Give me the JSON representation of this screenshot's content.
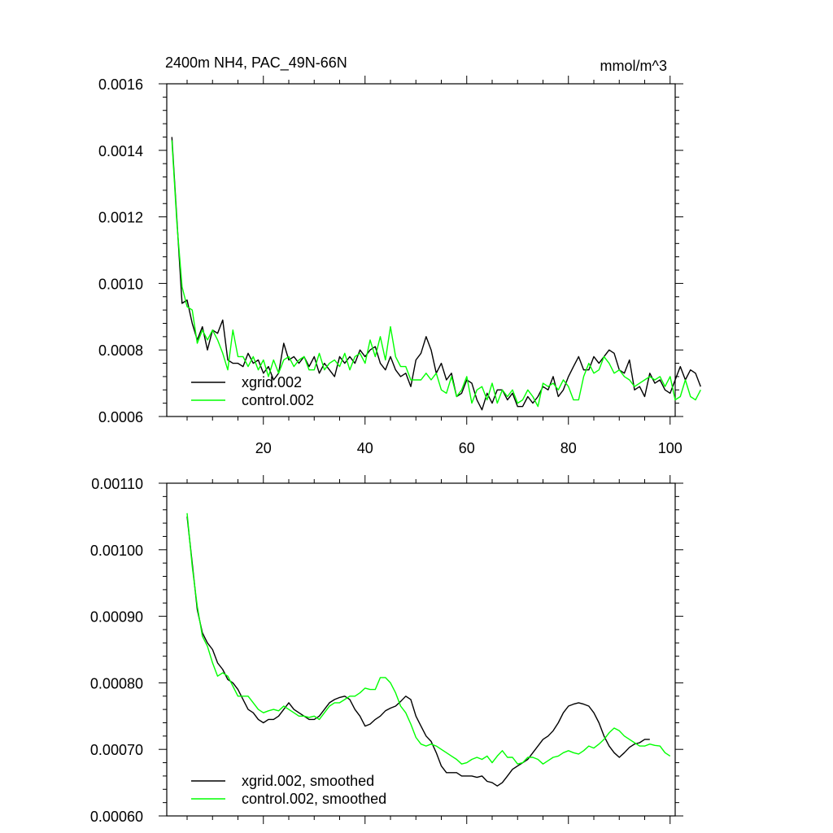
{
  "chart_data": [
    {
      "type": "line",
      "title": "2400m NH4, PAC_49N-66N",
      "units": "mmol/m^3",
      "xlim": [
        1,
        101
      ],
      "ylim": [
        0.0006,
        0.0016
      ],
      "x_ticks": [
        20,
        40,
        60,
        80,
        100
      ],
      "x_tick_labels": [
        "20",
        "40",
        "60",
        "80",
        "100"
      ],
      "y_ticks": [
        0.0006,
        0.0008,
        0.001,
        0.0012,
        0.0014,
        0.0016
      ],
      "y_tick_labels": [
        "0.0006",
        "0.0008",
        "0.0010",
        "0.0012",
        "0.0014",
        "0.0016"
      ],
      "x_start": 2,
      "legend_position": "bottom-left",
      "series": [
        {
          "name": "xgrid.002",
          "color": "#000000",
          "values": [
            0.00144,
            0.00119,
            0.00094,
            0.00095,
            0.00088,
            0.00083,
            0.00087,
            0.0008,
            0.00086,
            0.00085,
            0.00089,
            0.00077,
            0.00076,
            0.00076,
            0.00075,
            0.00079,
            0.00076,
            0.00077,
            0.00073,
            0.00075,
            0.00071,
            0.00073,
            0.00082,
            0.00077,
            0.00078,
            0.00076,
            0.00078,
            0.00075,
            0.00078,
            0.00073,
            0.00076,
            0.00074,
            0.00072,
            0.00078,
            0.00076,
            0.00078,
            0.00076,
            0.0008,
            0.00078,
            0.0008,
            0.00081,
            0.00076,
            0.00074,
            0.00078,
            0.00074,
            0.00072,
            0.00073,
            0.00069,
            0.00077,
            0.00079,
            0.00084,
            0.0008,
            0.00073,
            0.00076,
            0.00071,
            0.00073,
            0.00066,
            0.00067,
            0.00071,
            0.0007,
            0.00065,
            0.00062,
            0.00067,
            0.00064,
            0.00068,
            0.00068,
            0.00065,
            0.00067,
            0.00063,
            0.00063,
            0.00066,
            0.00064,
            0.00066,
            0.00069,
            0.00068,
            0.00072,
            0.00066,
            0.00068,
            0.00072,
            0.00075,
            0.00078,
            0.00074,
            0.00074,
            0.00078,
            0.00076,
            0.00078,
            0.0008,
            0.00079,
            0.00074,
            0.00073,
            0.00077,
            0.00068,
            0.00069,
            0.00066,
            0.00073,
            0.0007,
            0.00071,
            0.00068,
            0.00067,
            0.00071,
            0.00075,
            0.00071,
            0.00074,
            0.00073,
            0.00069
          ]
        },
        {
          "name": "control.002",
          "color": "#00ff00",
          "values": [
            0.00143,
            0.00118,
            0.00099,
            0.00093,
            0.00092,
            0.00082,
            0.00086,
            0.00083,
            0.00086,
            0.00083,
            0.00079,
            0.00074,
            0.00086,
            0.00078,
            0.00078,
            0.00075,
            0.00078,
            0.00074,
            0.00077,
            0.00072,
            0.00077,
            0.00073,
            0.00077,
            0.00078,
            0.00075,
            0.00077,
            0.00078,
            0.00074,
            0.00074,
            0.00079,
            0.00074,
            0.00076,
            0.00077,
            0.00075,
            0.00079,
            0.00074,
            0.00078,
            0.00079,
            0.00076,
            0.00083,
            0.00078,
            0.00084,
            0.00077,
            0.00087,
            0.00078,
            0.00075,
            0.00075,
            0.00071,
            0.00071,
            0.00071,
            0.00073,
            0.00071,
            0.00073,
            0.00068,
            0.00067,
            0.00072,
            0.00066,
            0.00068,
            0.00072,
            0.00064,
            0.00068,
            0.00069,
            0.00065,
            0.0007,
            0.00064,
            0.00068,
            0.00066,
            0.00068,
            0.00064,
            0.00065,
            0.00068,
            0.00066,
            0.00063,
            0.0007,
            0.00069,
            0.0007,
            0.00068,
            0.00071,
            0.00069,
            0.00065,
            0.00065,
            0.00072,
            0.00076,
            0.00073,
            0.00074,
            0.00078,
            0.00076,
            0.00073,
            0.00074,
            0.00072,
            0.00071,
            0.00069,
            0.0007,
            0.00071,
            0.00072,
            0.00071,
            0.00072,
            0.00069,
            0.00072,
            0.00065,
            0.00066,
            0.00071,
            0.00066,
            0.00065,
            0.00068
          ]
        }
      ]
    },
    {
      "type": "line",
      "xlim": [
        1,
        101
      ],
      "ylim": [
        0.0006,
        0.0011
      ],
      "x_ticks": [
        20,
        40,
        60,
        80,
        100
      ],
      "y_ticks": [
        0.0006,
        0.0007,
        0.0008,
        0.0009,
        0.001,
        0.0011
      ],
      "y_tick_labels": [
        "0.00060",
        "0.00070",
        "0.00080",
        "0.00090",
        "0.00100",
        "0.00110"
      ],
      "x_start": 5,
      "legend_position": "bottom-left",
      "series": [
        {
          "name": "xgrid.002, smoothed",
          "color": "#000000",
          "values": [
            0.00105,
            0.00098,
            0.00091,
            0.000875,
            0.00086,
            0.00085,
            0.00083,
            0.00082,
            0.000805,
            0.0008,
            0.00079,
            0.000775,
            0.00076,
            0.000755,
            0.000745,
            0.00074,
            0.000745,
            0.000745,
            0.00075,
            0.00076,
            0.00077,
            0.00076,
            0.000755,
            0.00075,
            0.000745,
            0.000745,
            0.00075,
            0.00076,
            0.00077,
            0.000775,
            0.000778,
            0.00078,
            0.000775,
            0.00076,
            0.00075,
            0.000735,
            0.000738,
            0.000745,
            0.00075,
            0.000758,
            0.000762,
            0.000765,
            0.000772,
            0.00078,
            0.000775,
            0.00075,
            0.000735,
            0.00072,
            0.000712,
            0.000695,
            0.000675,
            0.000665,
            0.000665,
            0.000665,
            0.00066,
            0.00066,
            0.00066,
            0.000658,
            0.00066,
            0.000652,
            0.00065,
            0.000645,
            0.00065,
            0.00066,
            0.00067,
            0.000675,
            0.00068,
            0.000685,
            0.000695,
            0.000705,
            0.000715,
            0.00072,
            0.000728,
            0.00074,
            0.000755,
            0.000765,
            0.000768,
            0.00077,
            0.000768,
            0.000765,
            0.000755,
            0.00074,
            0.00072,
            0.000705,
            0.000695,
            0.000688,
            0.000695,
            0.000703,
            0.000708,
            0.00071,
            0.000715,
            0.000715
          ]
        },
        {
          "name": "control.002, smoothed",
          "color": "#00ff00",
          "values": [
            0.001055,
            0.000975,
            0.000915,
            0.00087,
            0.000855,
            0.00083,
            0.00081,
            0.000815,
            0.00081,
            0.000795,
            0.00078,
            0.00078,
            0.00078,
            0.00077,
            0.00076,
            0.000755,
            0.000758,
            0.00076,
            0.000758,
            0.000765,
            0.00076,
            0.000755,
            0.00075,
            0.00075,
            0.000748,
            0.00075,
            0.000745,
            0.000755,
            0.000765,
            0.00077,
            0.00077,
            0.000775,
            0.00078,
            0.00078,
            0.000785,
            0.000792,
            0.00079,
            0.00079,
            0.000808,
            0.000808,
            0.0008,
            0.000785,
            0.000765,
            0.000755,
            0.000738,
            0.000718,
            0.000708,
            0.000705,
            0.000708,
            0.000705,
            0.0007,
            0.000695,
            0.00069,
            0.000685,
            0.000678,
            0.00068,
            0.000685,
            0.000688,
            0.000685,
            0.00069,
            0.00068,
            0.00069,
            0.000698,
            0.000688,
            0.000688,
            0.000678,
            0.00068,
            0.000688,
            0.000688,
            0.000685,
            0.000678,
            0.000683,
            0.000688,
            0.00069,
            0.000695,
            0.000698,
            0.000695,
            0.000693,
            0.000698,
            0.000705,
            0.000702,
            0.000708,
            0.000715,
            0.000725,
            0.000732,
            0.000728,
            0.00072,
            0.000715,
            0.00071,
            0.000705,
            0.000705,
            0.000708,
            0.000706,
            0.000705,
            0.000695,
            0.00069
          ]
        }
      ]
    }
  ]
}
